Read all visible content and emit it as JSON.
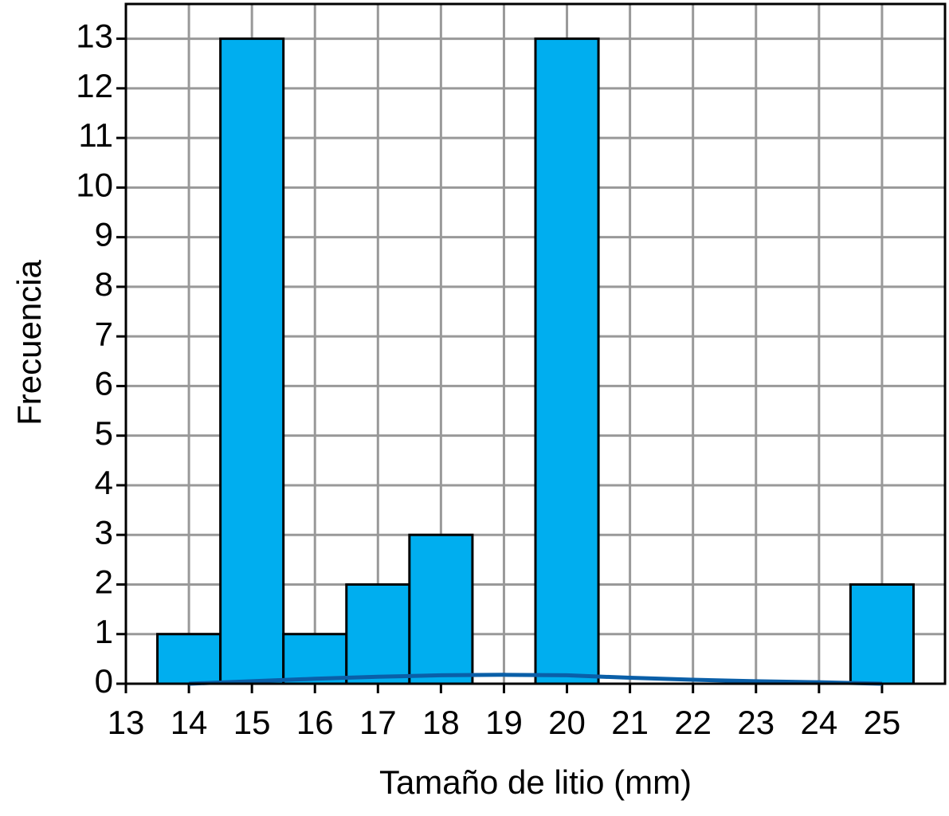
{
  "chart_data": {
    "type": "histogram",
    "x_label": "Tamaño de litio (mm)",
    "y_label": "Frecuencia",
    "bins": [
      13.5,
      14.5,
      15.5,
      16.5,
      17.5,
      18.5,
      19.5,
      20.5,
      21.5,
      22.5,
      23.5,
      24.5,
      25.5
    ],
    "values": [
      1,
      13,
      1,
      2,
      3,
      0,
      13,
      0,
      0,
      0,
      0,
      2
    ],
    "color": "#00aeef",
    "curve": {
      "x": [
        14,
        15,
        16,
        17,
        18,
        19,
        20,
        21,
        22,
        23,
        24,
        25
      ],
      "values": [
        0,
        0.05,
        0.1,
        0.14,
        0.17,
        0.18,
        0.17,
        0.12,
        0.08,
        0.05,
        0.03,
        0
      ],
      "color": "#0a5fa8"
    },
    "xlim": [
      13,
      26
    ],
    "xticks": [
      13,
      14,
      15,
      16,
      17,
      18,
      19,
      20,
      21,
      22,
      23,
      24,
      25
    ],
    "ylim": [
      0,
      13.7
    ],
    "yticks": [
      0,
      1,
      2,
      3,
      4,
      5,
      6,
      7,
      8,
      9,
      10,
      11,
      12,
      13
    ],
    "grid": true
  }
}
